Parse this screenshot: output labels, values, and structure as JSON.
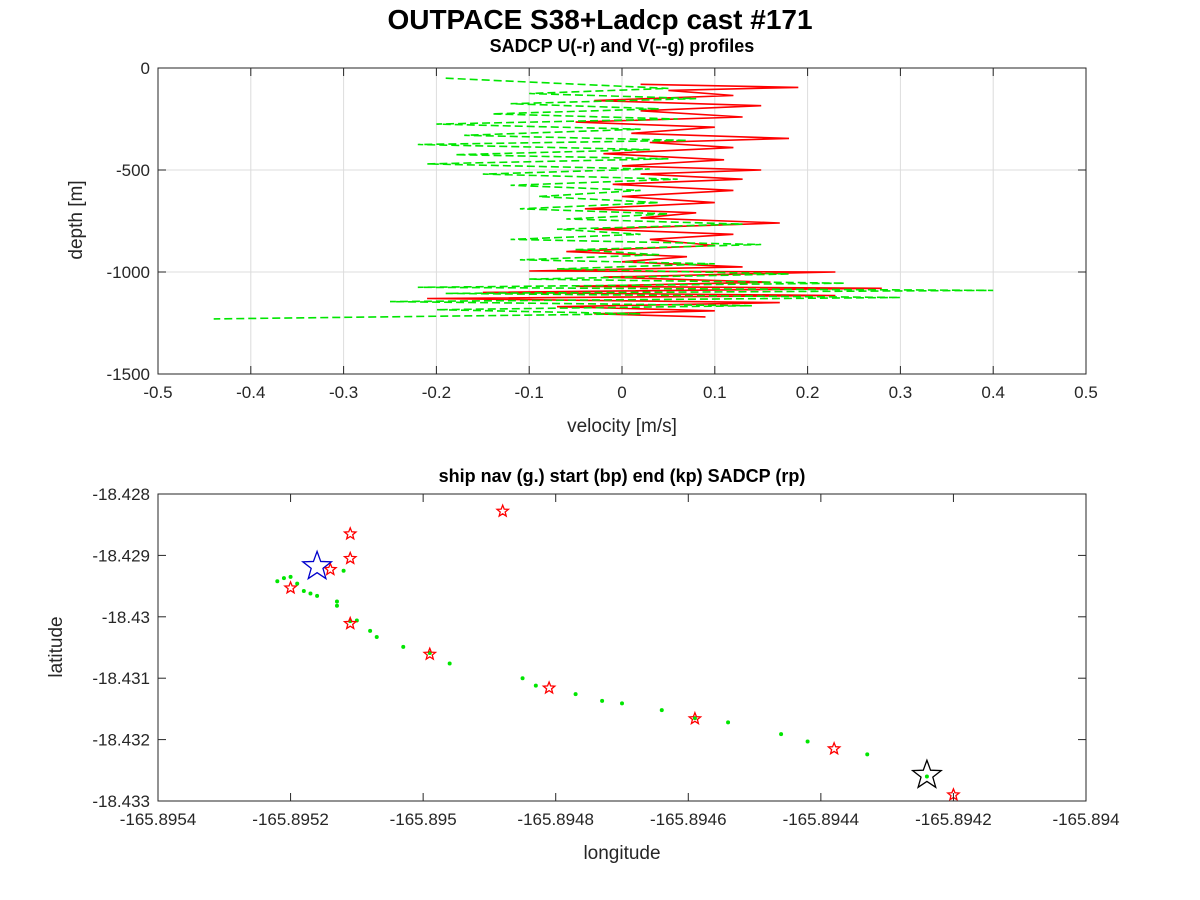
{
  "figure": {
    "title": "OUTPACE S38+Ladcp cast #171"
  },
  "chart_data": [
    {
      "type": "line",
      "title": "SADCP U(-r) and V(--g) profiles",
      "xlabel": "velocity [m/s]",
      "ylabel": "depth [m]",
      "xlim": [
        -0.5,
        0.5
      ],
      "ylim": [
        -1500,
        0
      ],
      "xticks": [
        "-0.5",
        "-0.4",
        "-0.3",
        "-0.2",
        "-0.1",
        "0",
        "0.1",
        "0.2",
        "0.3",
        "0.4",
        "0.5"
      ],
      "yticks": [
        "0",
        "-500",
        "-1000",
        "-1500"
      ],
      "grid": true,
      "series": [
        {
          "color": "#ff0000",
          "style": "solid",
          "points": [
            [
              0.02,
              -80
            ],
            [
              0.19,
              -95
            ],
            [
              0.05,
              -110
            ],
            [
              0.12,
              -135
            ],
            [
              -0.03,
              -160
            ],
            [
              0.15,
              -185
            ],
            [
              0.02,
              -210
            ],
            [
              0.13,
              -240
            ],
            [
              -0.05,
              -265
            ],
            [
              0.1,
              -290
            ],
            [
              0.01,
              -320
            ],
            [
              0.18,
              -345
            ],
            [
              0.03,
              -365
            ],
            [
              0.12,
              -390
            ],
            [
              -0.02,
              -420
            ],
            [
              0.11,
              -450
            ],
            [
              0.0,
              -480
            ],
            [
              0.15,
              -500
            ],
            [
              0.02,
              -520
            ],
            [
              0.13,
              -545
            ],
            [
              -0.01,
              -570
            ],
            [
              0.12,
              -600
            ],
            [
              0.0,
              -630
            ],
            [
              0.1,
              -660
            ],
            [
              -0.04,
              -690
            ],
            [
              0.08,
              -710
            ],
            [
              0.02,
              -735
            ],
            [
              0.17,
              -760
            ],
            [
              -0.03,
              -790
            ],
            [
              0.12,
              -815
            ],
            [
              0.03,
              -840
            ],
            [
              0.1,
              -870
            ],
            [
              -0.06,
              -900
            ],
            [
              0.07,
              -925
            ],
            [
              0.0,
              -950
            ],
            [
              0.13,
              -975
            ],
            [
              -0.1,
              -995
            ],
            [
              0.23,
              -1000
            ],
            [
              -0.02,
              -1025
            ],
            [
              0.16,
              -1050
            ],
            [
              -0.05,
              -1070
            ],
            [
              0.28,
              -1080
            ],
            [
              -0.15,
              -1100
            ],
            [
              0.23,
              -1115
            ],
            [
              -0.21,
              -1130
            ],
            [
              0.17,
              -1150
            ],
            [
              -0.07,
              -1170
            ],
            [
              0.1,
              -1190
            ],
            [
              -0.03,
              -1205
            ],
            [
              0.09,
              -1220
            ]
          ]
        },
        {
          "color": "#00e600",
          "style": "dashed",
          "points": [
            [
              -0.19,
              -50
            ],
            [
              -0.07,
              -75
            ],
            [
              0.05,
              -100
            ],
            [
              -0.1,
              -125
            ],
            [
              0.08,
              -150
            ],
            [
              -0.12,
              -175
            ],
            [
              0.04,
              -200
            ],
            [
              -0.14,
              -225
            ],
            [
              0.06,
              -250
            ],
            [
              -0.2,
              -275
            ],
            [
              0.02,
              -300
            ],
            [
              -0.17,
              -330
            ],
            [
              0.07,
              -355
            ],
            [
              -0.22,
              -375
            ],
            [
              0.03,
              -400
            ],
            [
              -0.18,
              -425
            ],
            [
              0.05,
              -445
            ],
            [
              -0.21,
              -470
            ],
            [
              0.03,
              -495
            ],
            [
              -0.15,
              -520
            ],
            [
              0.06,
              -545
            ],
            [
              -0.12,
              -575
            ],
            [
              0.02,
              -600
            ],
            [
              -0.09,
              -630
            ],
            [
              0.04,
              -660
            ],
            [
              -0.11,
              -690
            ],
            [
              0.05,
              -715
            ],
            [
              -0.06,
              -740
            ],
            [
              0.13,
              -765
            ],
            [
              -0.07,
              -790
            ],
            [
              0.02,
              -815
            ],
            [
              -0.12,
              -840
            ],
            [
              0.15,
              -865
            ],
            [
              -0.05,
              -890
            ],
            [
              0.04,
              -915
            ],
            [
              -0.11,
              -940
            ],
            [
              0.1,
              -960
            ],
            [
              -0.07,
              -985
            ],
            [
              0.18,
              -1010
            ],
            [
              -0.1,
              -1035
            ],
            [
              0.24,
              -1055
            ],
            [
              -0.22,
              -1075
            ],
            [
              0.4,
              -1090
            ],
            [
              -0.19,
              -1105
            ],
            [
              0.3,
              -1125
            ],
            [
              -0.25,
              -1145
            ],
            [
              0.14,
              -1165
            ],
            [
              -0.2,
              -1185
            ],
            [
              0.02,
              -1205
            ],
            [
              -0.44,
              -1230
            ]
          ]
        }
      ]
    },
    {
      "type": "scatter",
      "title": "ship nav (g.) start (bp) end (kp) SADCP (rp)",
      "xlabel": "longitude",
      "ylabel": "latitude",
      "xlim": [
        -165.8954,
        -165.894
      ],
      "ylim": [
        -18.433,
        -18.428
      ],
      "xticks": [
        "-165.8954",
        "-165.8952",
        "-165.895",
        "-165.8948",
        "-165.8946",
        "-165.8944",
        "-165.8942",
        "-165.894"
      ],
      "yticks": [
        "-18.428",
        "-18.429",
        "-18.43",
        "-18.431",
        "-18.432",
        "-18.433"
      ],
      "grid": false,
      "series": [
        {
          "name": "ship nav",
          "marker": "dot",
          "color": "#00e600",
          "points": [
            [
              -165.89522,
              -18.42942
            ],
            [
              -165.89521,
              -18.42937
            ],
            [
              -165.8952,
              -18.42935
            ],
            [
              -165.89519,
              -18.42946
            ],
            [
              -165.89518,
              -18.42958
            ],
            [
              -165.89517,
              -18.42962
            ],
            [
              -165.89516,
              -18.42966
            ],
            [
              -165.89513,
              -18.42975
            ],
            [
              -165.89513,
              -18.42982
            ],
            [
              -165.89512,
              -18.42925
            ],
            [
              -165.89511,
              -18.43007
            ],
            [
              -165.8951,
              -18.43006
            ],
            [
              -165.89508,
              -18.43023
            ],
            [
              -165.89507,
              -18.43033
            ],
            [
              -165.89503,
              -18.43049
            ],
            [
              -165.89499,
              -18.43059
            ],
            [
              -165.89496,
              -18.43076
            ],
            [
              -165.89485,
              -18.431
            ],
            [
              -165.89483,
              -18.43112
            ],
            [
              -165.89477,
              -18.43126
            ],
            [
              -165.89473,
              -18.43137
            ],
            [
              -165.8947,
              -18.43141
            ],
            [
              -165.89464,
              -18.43152
            ],
            [
              -165.89459,
              -18.43165
            ],
            [
              -165.89454,
              -18.43172
            ],
            [
              -165.89446,
              -18.43191
            ],
            [
              -165.89442,
              -18.43203
            ],
            [
              -165.89433,
              -18.43224
            ],
            [
              -165.89424,
              -18.4326
            ]
          ]
        },
        {
          "name": "SADCP",
          "marker": "star",
          "color": "#ff0000",
          "points": [
            [
              -165.89488,
              -18.42828
            ],
            [
              -165.89511,
              -18.42865
            ],
            [
              -165.89511,
              -18.42905
            ],
            [
              -165.89514,
              -18.42923
            ],
            [
              -165.8952,
              -18.42953
            ],
            [
              -165.89511,
              -18.43011
            ],
            [
              -165.89499,
              -18.43061
            ],
            [
              -165.89481,
              -18.43116
            ],
            [
              -165.89459,
              -18.43166
            ],
            [
              -165.89438,
              -18.43215
            ],
            [
              -165.8942,
              -18.4329
            ]
          ]
        },
        {
          "name": "start",
          "marker": "star-large",
          "color": "#0000cc",
          "points": [
            [
              -165.89516,
              -18.42918
            ]
          ]
        },
        {
          "name": "end",
          "marker": "star-large",
          "color": "#000000",
          "points": [
            [
              -165.89424,
              -18.43258
            ]
          ]
        }
      ]
    }
  ]
}
